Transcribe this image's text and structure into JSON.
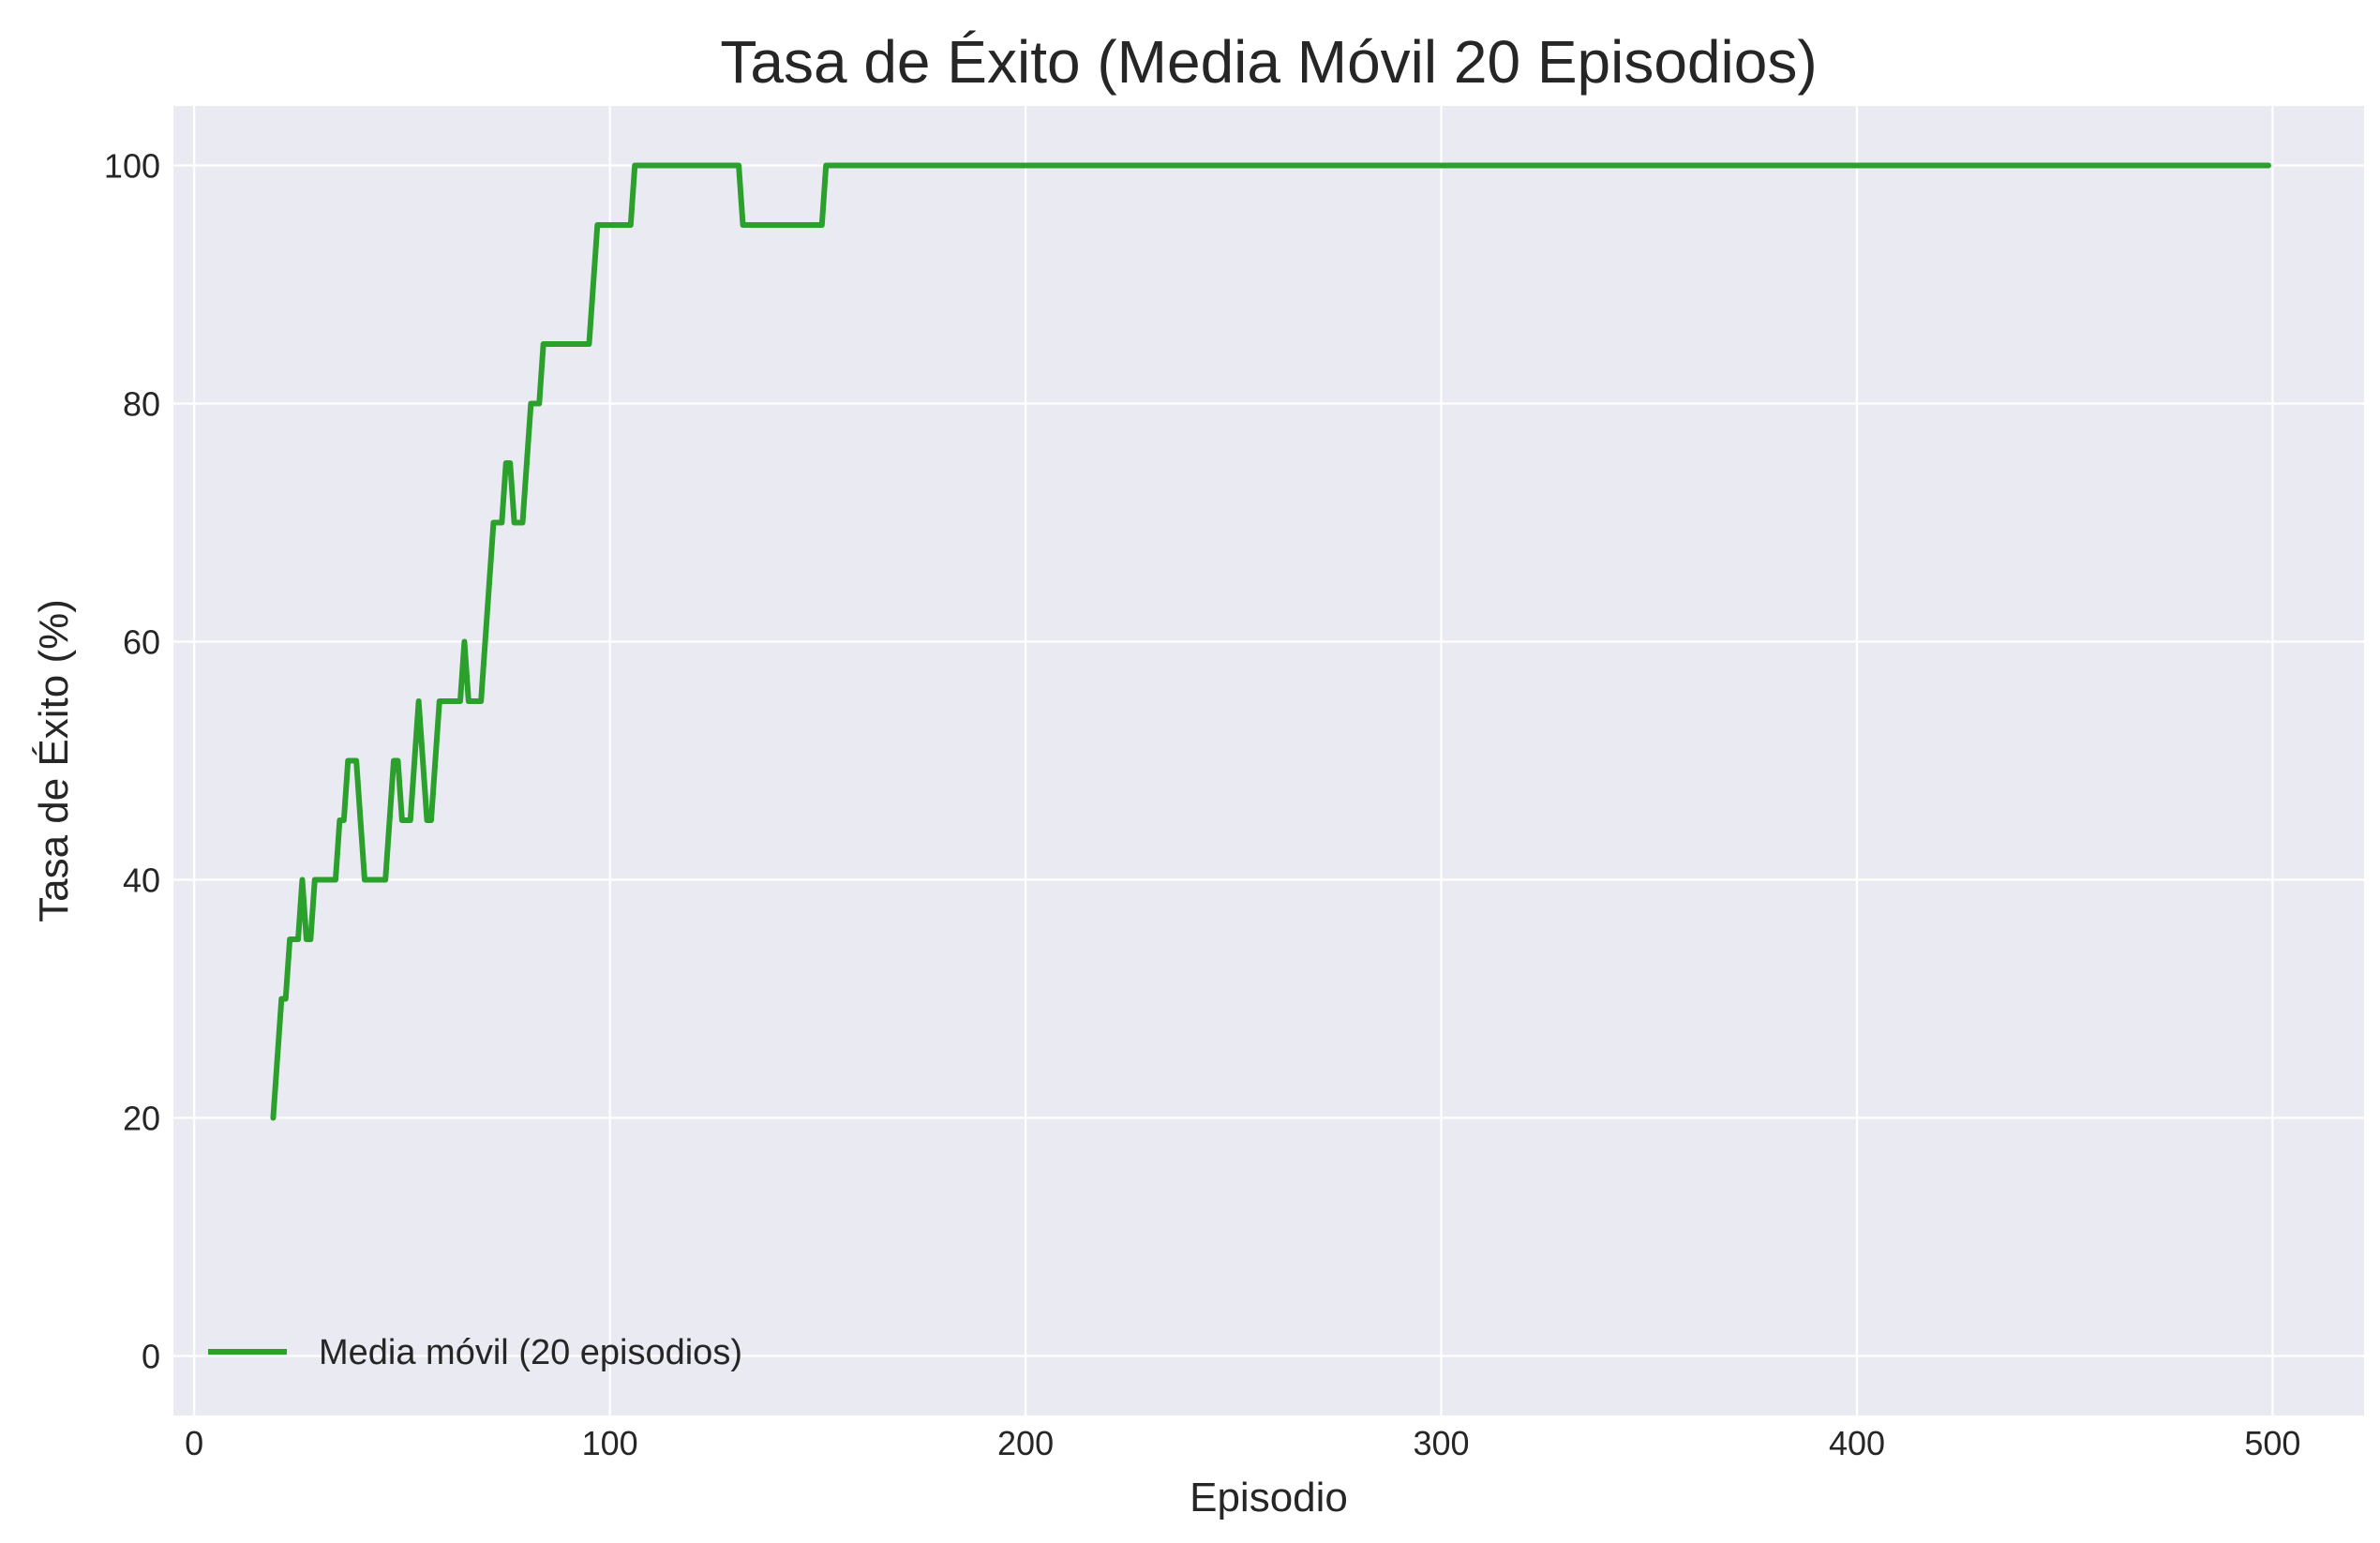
{
  "chart_data": {
    "type": "line",
    "title": "Tasa de Éxito (Media Móvil 20 Episodios)",
    "xlabel": "Episodio",
    "ylabel": "Tasa de Éxito (%)",
    "xlim": [
      -5,
      522
    ],
    "ylim": [
      -5,
      105
    ],
    "xticks": [
      0,
      100,
      200,
      300,
      400,
      500
    ],
    "yticks": [
      0,
      20,
      40,
      60,
      80,
      100
    ],
    "grid": true,
    "legend_position": "lower-left",
    "series": [
      {
        "name": "Media móvil (20 episodios)",
        "color": "#2ca02c",
        "points": [
          [
            19,
            20
          ],
          [
            21,
            30
          ],
          [
            22,
            30
          ],
          [
            23,
            35
          ],
          [
            25,
            35
          ],
          [
            26,
            40
          ],
          [
            27,
            35
          ],
          [
            28,
            35
          ],
          [
            29,
            40
          ],
          [
            34,
            40
          ],
          [
            35,
            45
          ],
          [
            36,
            45
          ],
          [
            37,
            50
          ],
          [
            39,
            50
          ],
          [
            41,
            40
          ],
          [
            46,
            40
          ],
          [
            48,
            50
          ],
          [
            49,
            50
          ],
          [
            50,
            45
          ],
          [
            52,
            45
          ],
          [
            54,
            55
          ],
          [
            56,
            45
          ],
          [
            57,
            45
          ],
          [
            59,
            55
          ],
          [
            64,
            55
          ],
          [
            65,
            60
          ],
          [
            66,
            55
          ],
          [
            69,
            55
          ],
          [
            72,
            70
          ],
          [
            74,
            70
          ],
          [
            75,
            75
          ],
          [
            76,
            75
          ],
          [
            77,
            70
          ],
          [
            79,
            70
          ],
          [
            81,
            80
          ],
          [
            83,
            80
          ],
          [
            84,
            85
          ],
          [
            95,
            85
          ],
          [
            97,
            95
          ],
          [
            105,
            95
          ],
          [
            106,
            100
          ],
          [
            131,
            100
          ],
          [
            132,
            95
          ],
          [
            151,
            95
          ],
          [
            152,
            100
          ],
          [
            499,
            100
          ]
        ]
      }
    ]
  }
}
